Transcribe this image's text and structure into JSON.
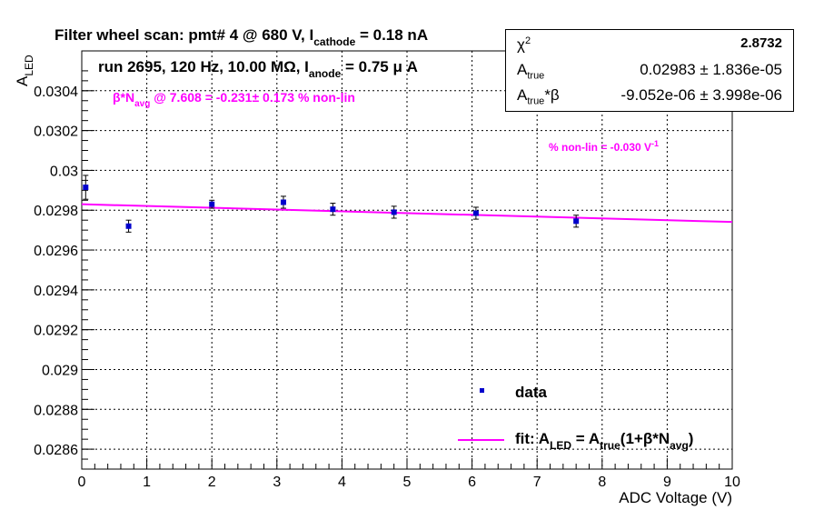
{
  "chart_data": {
    "type": "scatter",
    "title_main": "Filter wheel scan: pmt#   4 @   680 V, I",
    "title_sub": "cathode",
    "title_tail": " = 0.18 nA",
    "run_main": "run 2695, 120 Hz, 10.00 MΩ, I",
    "run_sub": "anode",
    "run_tail": " = 0.75 μ A",
    "beta_main": "β*N",
    "beta_sub": "avg",
    "beta_tail": " @ 7.608 = -0.231± 0.173 % non-lin",
    "nonlin_main": "% non-lin = -0.030 V",
    "nonlin_sup": "-1",
    "ylabel_main": "A",
    "ylabel_sub": "LED",
    "xlabel": "ADC Voltage (V)",
    "xlim": [
      0,
      10
    ],
    "ylim": [
      0.0285,
      0.0306
    ],
    "x_ticks": [
      "0",
      "1",
      "2",
      "3",
      "4",
      "5",
      "6",
      "7",
      "8",
      "9",
      "10"
    ],
    "y_ticks": [
      "0.0286",
      "0.0288",
      "0.029",
      "0.0292",
      "0.0294",
      "0.0296",
      "0.0298",
      "0.03",
      "0.0302",
      "0.0304"
    ],
    "x_tick_values": [
      0,
      1,
      2,
      3,
      4,
      5,
      6,
      7,
      8,
      9,
      10
    ],
    "y_tick_values": [
      0.0286,
      0.0288,
      0.029,
      0.0292,
      0.0294,
      0.0296,
      0.0298,
      0.03,
      0.0302,
      0.0304
    ],
    "grid": true,
    "series": [
      {
        "name": "data",
        "color": "#0000cc",
        "points": [
          {
            "x": 0.06,
            "y": 0.029915,
            "err": 6e-05
          },
          {
            "x": 0.72,
            "y": 0.02972,
            "err": 3e-05
          },
          {
            "x": 2.0,
            "y": 0.02983,
            "err": 2e-05
          },
          {
            "x": 3.1,
            "y": 0.02984,
            "err": 3e-05
          },
          {
            "x": 3.86,
            "y": 0.029805,
            "err": 3e-05
          },
          {
            "x": 4.8,
            "y": 0.02979,
            "err": 3e-05
          },
          {
            "x": 6.06,
            "y": 0.029785,
            "err": 3e-05
          },
          {
            "x": 7.6,
            "y": 0.029745,
            "err": 3e-05
          }
        ]
      },
      {
        "name": "fit",
        "color": "#ff00ff",
        "line": {
          "x": [
            0,
            10
          ],
          "y": [
            0.02983,
            0.029741
          ]
        }
      }
    ],
    "legend": {
      "position": "bottom-right",
      "data_label": "data",
      "fit_prefix": "fit: A",
      "fit_sub1": "LED",
      "fit_mid": " = A",
      "fit_sub2": "true",
      "fit_mid2": "(1+β*N",
      "fit_sub3": "avg",
      "fit_end": ")"
    }
  },
  "stats_box": {
    "chi2_label": "χ",
    "chi2_sup": "2",
    "chi2_value": "2.8732",
    "atrue_label": "A",
    "atrue_sub": "true",
    "atrue_value": "0.02983 ± 1.836e-05",
    "ab_label": "A",
    "ab_sub": "true",
    "ab_tail": "*β",
    "ab_value": "-9.052e-06 ± 3.998e-06"
  }
}
